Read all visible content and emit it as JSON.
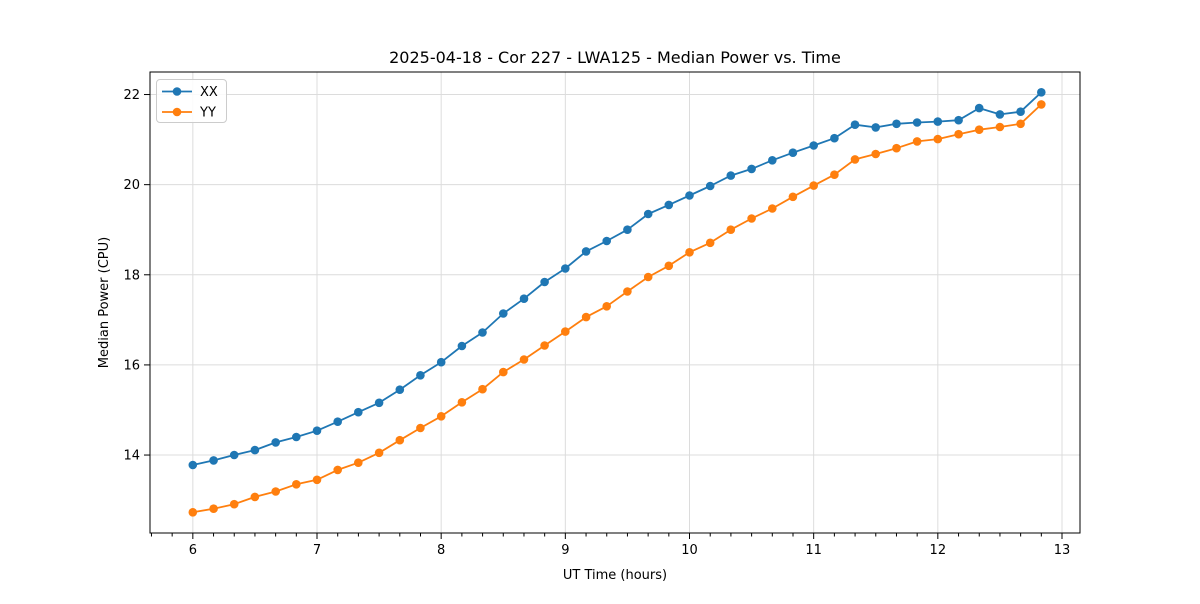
{
  "chart_data": {
    "type": "line",
    "title": "2025-04-18 - Cor 227 - LWA125 - Median Power vs. Time",
    "xlabel": "UT Time (hours)",
    "ylabel": "Median Power (CPU)",
    "xlim": [
      5.655,
      13.145
    ],
    "ylim": [
      12.27,
      22.5
    ],
    "xticks": [
      6,
      7,
      8,
      9,
      10,
      11,
      12,
      13
    ],
    "yticks": [
      14,
      16,
      18,
      20,
      22
    ],
    "x_minor_step": 0.16667,
    "grid": true,
    "legend_position": "upper left",
    "marker": "circle",
    "x": [
      6.0,
      6.167,
      6.333,
      6.5,
      6.667,
      6.833,
      7.0,
      7.167,
      7.333,
      7.5,
      7.667,
      7.833,
      8.0,
      8.167,
      8.333,
      8.5,
      8.667,
      8.833,
      9.0,
      9.167,
      9.333,
      9.5,
      9.667,
      9.833,
      10.0,
      10.167,
      10.333,
      10.5,
      10.667,
      10.833,
      11.0,
      11.167,
      11.333,
      11.5,
      11.667,
      11.833,
      12.0,
      12.167,
      12.333,
      12.5,
      12.667,
      12.833
    ],
    "series": [
      {
        "name": "XX",
        "color": "#1f77b4",
        "values": [
          13.78,
          13.88,
          14.0,
          14.11,
          14.28,
          14.4,
          14.54,
          14.74,
          14.95,
          15.16,
          15.45,
          15.77,
          16.06,
          16.42,
          16.72,
          17.14,
          17.47,
          17.84,
          18.14,
          18.52,
          18.75,
          19.0,
          19.35,
          19.55,
          19.76,
          19.97,
          20.2,
          20.35,
          20.54,
          20.71,
          20.87,
          21.03,
          21.33,
          21.27,
          21.35,
          21.38,
          21.4,
          21.43,
          21.7,
          21.56,
          21.62,
          22.05
        ]
      },
      {
        "name": "YY",
        "color": "#ff7f0e",
        "values": [
          12.73,
          12.81,
          12.91,
          13.07,
          13.19,
          13.35,
          13.45,
          13.67,
          13.83,
          14.05,
          14.33,
          14.6,
          14.86,
          15.17,
          15.46,
          15.84,
          16.12,
          16.43,
          16.74,
          17.06,
          17.3,
          17.63,
          17.95,
          18.2,
          18.5,
          18.71,
          19.0,
          19.25,
          19.47,
          19.73,
          19.98,
          20.22,
          20.56,
          20.68,
          20.81,
          20.96,
          21.01,
          21.12,
          21.22,
          21.28,
          21.35,
          21.78
        ]
      }
    ],
    "colors": {
      "background": "#ffffff",
      "spine": "#000000",
      "grid": "#dcdcdc",
      "text": "#000000",
      "legend_border": "#cccccc",
      "legend_background": "#ffffff"
    }
  }
}
